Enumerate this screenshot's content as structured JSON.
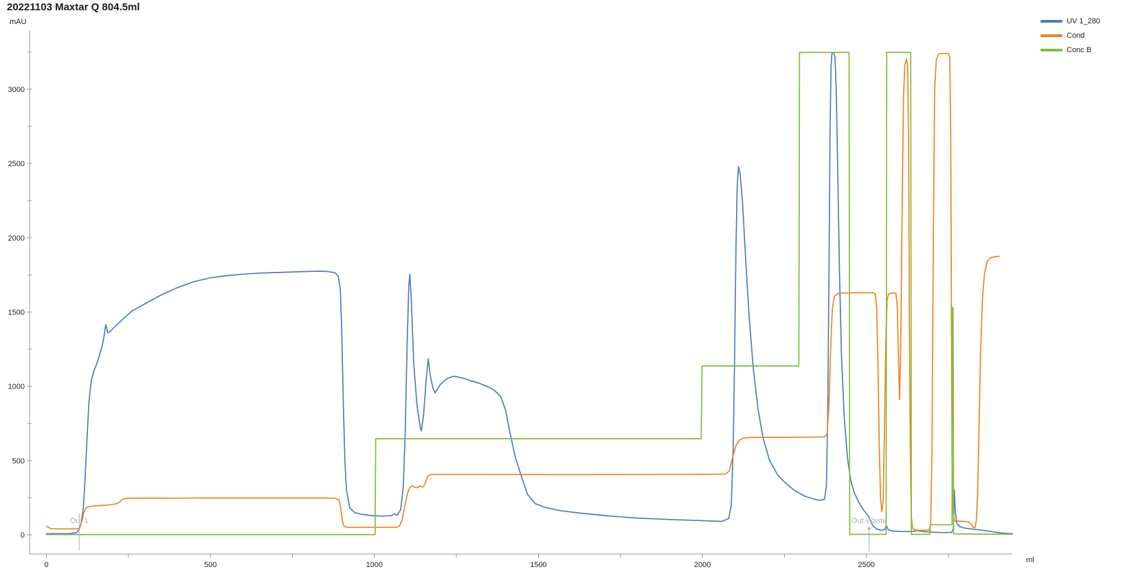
{
  "chart_data": {
    "type": "line",
    "title": "20221103 Maxtar Q 804.5ml",
    "y_axis": {
      "unit": "mAU",
      "tick_labels": [
        0,
        500,
        1000,
        1500,
        2000,
        2500,
        3000
      ],
      "minor_tick_step": 250,
      "range": [
        0,
        3390
      ]
    },
    "x_axis": {
      "unit": "ml",
      "tick_labels": [
        0,
        500,
        1000,
        1500,
        2000,
        2500
      ],
      "minor_tick_step": 250,
      "range": [
        0,
        2950
      ]
    },
    "legend_position": "top-right",
    "grid": false,
    "annotations": [
      {
        "label": "Out 1",
        "ml": 100
      },
      {
        "label": "Out Waste",
        "ml": 2508
      }
    ],
    "series": [
      {
        "name": "UV 1_280",
        "color": "#4a7ebb",
        "points": [
          [
            0,
            8
          ],
          [
            70,
            8
          ],
          [
            92,
            14
          ],
          [
            100,
            35
          ],
          [
            106,
            80
          ],
          [
            112,
            170
          ],
          [
            116,
            300
          ],
          [
            120,
            480
          ],
          [
            125,
            700
          ],
          [
            130,
            900
          ],
          [
            137,
            1040
          ],
          [
            145,
            1105
          ],
          [
            155,
            1160
          ],
          [
            170,
            1270
          ],
          [
            176,
            1340
          ],
          [
            181,
            1415
          ],
          [
            187,
            1360
          ],
          [
            195,
            1370
          ],
          [
            210,
            1405
          ],
          [
            230,
            1445
          ],
          [
            260,
            1505
          ],
          [
            300,
            1555
          ],
          [
            350,
            1615
          ],
          [
            400,
            1665
          ],
          [
            450,
            1705
          ],
          [
            500,
            1730
          ],
          [
            550,
            1745
          ],
          [
            600,
            1755
          ],
          [
            650,
            1762
          ],
          [
            700,
            1766
          ],
          [
            750,
            1770
          ],
          [
            800,
            1773
          ],
          [
            830,
            1775
          ],
          [
            855,
            1773
          ],
          [
            880,
            1765
          ],
          [
            890,
            1740
          ],
          [
            896,
            1650
          ],
          [
            900,
            1400
          ],
          [
            905,
            900
          ],
          [
            910,
            500
          ],
          [
            915,
            300
          ],
          [
            925,
            180
          ],
          [
            940,
            150
          ],
          [
            960,
            138
          ],
          [
            990,
            130
          ],
          [
            1020,
            126
          ],
          [
            1050,
            128
          ],
          [
            1060,
            140
          ],
          [
            1070,
            132
          ],
          [
            1080,
            170
          ],
          [
            1088,
            320
          ],
          [
            1094,
            700
          ],
          [
            1100,
            1300
          ],
          [
            1105,
            1680
          ],
          [
            1108,
            1755
          ],
          [
            1112,
            1600
          ],
          [
            1120,
            1150
          ],
          [
            1130,
            870
          ],
          [
            1140,
            720
          ],
          [
            1143,
            700
          ],
          [
            1150,
            810
          ],
          [
            1158,
            1050
          ],
          [
            1164,
            1185
          ],
          [
            1170,
            1080
          ],
          [
            1178,
            990
          ],
          [
            1185,
            955
          ],
          [
            1200,
            1010
          ],
          [
            1220,
            1050
          ],
          [
            1240,
            1068
          ],
          [
            1265,
            1058
          ],
          [
            1290,
            1040
          ],
          [
            1320,
            1020
          ],
          [
            1345,
            998
          ],
          [
            1365,
            975
          ],
          [
            1385,
            930
          ],
          [
            1400,
            840
          ],
          [
            1412,
            700
          ],
          [
            1430,
            520
          ],
          [
            1450,
            380
          ],
          [
            1467,
            272
          ],
          [
            1490,
            210
          ],
          [
            1520,
            185
          ],
          [
            1560,
            165
          ],
          [
            1620,
            148
          ],
          [
            1700,
            130
          ],
          [
            1800,
            113
          ],
          [
            1900,
            103
          ],
          [
            1990,
            96
          ],
          [
            2060,
            90
          ],
          [
            2080,
            110
          ],
          [
            2088,
            200
          ],
          [
            2094,
            600
          ],
          [
            2098,
            1200
          ],
          [
            2102,
            1900
          ],
          [
            2106,
            2350
          ],
          [
            2110,
            2480
          ],
          [
            2115,
            2430
          ],
          [
            2122,
            2250
          ],
          [
            2132,
            1850
          ],
          [
            2142,
            1480
          ],
          [
            2155,
            1120
          ],
          [
            2170,
            840
          ],
          [
            2185,
            650
          ],
          [
            2205,
            500
          ],
          [
            2230,
            400
          ],
          [
            2255,
            345
          ],
          [
            2280,
            300
          ],
          [
            2310,
            262
          ],
          [
            2340,
            240
          ],
          [
            2360,
            232
          ],
          [
            2372,
            240
          ],
          [
            2378,
            330
          ],
          [
            2382,
            800
          ],
          [
            2386,
            1800
          ],
          [
            2389,
            2700
          ],
          [
            2392,
            3150
          ],
          [
            2395,
            3242
          ],
          [
            2400,
            3246
          ],
          [
            2404,
            3220
          ],
          [
            2408,
            3000
          ],
          [
            2413,
            2400
          ],
          [
            2418,
            1750
          ],
          [
            2424,
            1200
          ],
          [
            2432,
            800
          ],
          [
            2442,
            520
          ],
          [
            2452,
            370
          ],
          [
            2462,
            290
          ],
          [
            2475,
            225
          ],
          [
            2492,
            165
          ],
          [
            2505,
            130
          ],
          [
            2512,
            95
          ],
          [
            2520,
            60
          ],
          [
            2532,
            38
          ],
          [
            2545,
            30
          ],
          [
            2555,
            35
          ],
          [
            2561,
            62
          ],
          [
            2566,
            35
          ],
          [
            2580,
            25
          ],
          [
            2610,
            22
          ],
          [
            2640,
            22
          ],
          [
            2655,
            28
          ],
          [
            2670,
            22
          ],
          [
            2700,
            18
          ],
          [
            2740,
            15
          ],
          [
            2760,
            16
          ],
          [
            2765,
            40
          ],
          [
            2768,
            300
          ],
          [
            2771,
            150
          ],
          [
            2776,
            75
          ],
          [
            2785,
            55
          ],
          [
            2800,
            45
          ],
          [
            2825,
            38
          ],
          [
            2850,
            32
          ],
          [
            2880,
            22
          ],
          [
            2910,
            12
          ],
          [
            2945,
            8
          ]
        ]
      },
      {
        "name": "Cond",
        "color": "#ee8420",
        "points": [
          [
            0,
            55
          ],
          [
            6,
            52
          ],
          [
            12,
            43
          ],
          [
            25,
            40
          ],
          [
            60,
            40
          ],
          [
            95,
            40
          ],
          [
            102,
            48
          ],
          [
            108,
            85
          ],
          [
            113,
            140
          ],
          [
            119,
            175
          ],
          [
            126,
            188
          ],
          [
            140,
            193
          ],
          [
            165,
            197
          ],
          [
            195,
            202
          ],
          [
            215,
            210
          ],
          [
            224,
            222
          ],
          [
            232,
            238
          ],
          [
            240,
            245
          ],
          [
            270,
            247
          ],
          [
            350,
            247
          ],
          [
            500,
            248
          ],
          [
            700,
            248
          ],
          [
            840,
            248
          ],
          [
            880,
            246
          ],
          [
            893,
            235
          ],
          [
            898,
            170
          ],
          [
            903,
            85
          ],
          [
            908,
            55
          ],
          [
            920,
            50
          ],
          [
            1000,
            50
          ],
          [
            1065,
            50
          ],
          [
            1076,
            58
          ],
          [
            1085,
            105
          ],
          [
            1093,
            200
          ],
          [
            1101,
            280
          ],
          [
            1108,
            318
          ],
          [
            1115,
            330
          ],
          [
            1123,
            320
          ],
          [
            1131,
            316
          ],
          [
            1139,
            330
          ],
          [
            1146,
            320
          ],
          [
            1152,
            332
          ],
          [
            1158,
            368
          ],
          [
            1164,
            398
          ],
          [
            1172,
            406
          ],
          [
            1250,
            406
          ],
          [
            1400,
            406
          ],
          [
            1600,
            405
          ],
          [
            1800,
            406
          ],
          [
            2000,
            407
          ],
          [
            2070,
            409
          ],
          [
            2082,
            430
          ],
          [
            2092,
            520
          ],
          [
            2102,
            600
          ],
          [
            2112,
            638
          ],
          [
            2125,
            652
          ],
          [
            2150,
            656
          ],
          [
            2250,
            657
          ],
          [
            2340,
            658
          ],
          [
            2372,
            659
          ],
          [
            2380,
            680
          ],
          [
            2386,
            880
          ],
          [
            2391,
            1250
          ],
          [
            2396,
            1520
          ],
          [
            2402,
            1605
          ],
          [
            2410,
            1622
          ],
          [
            2425,
            1628
          ],
          [
            2480,
            1630
          ],
          [
            2520,
            1630
          ],
          [
            2527,
            1622
          ],
          [
            2531,
            1540
          ],
          [
            2535,
            1150
          ],
          [
            2539,
            600
          ],
          [
            2543,
            250
          ],
          [
            2547,
            155
          ],
          [
            2551,
            230
          ],
          [
            2555,
            700
          ],
          [
            2559,
            1300
          ],
          [
            2563,
            1580
          ],
          [
            2568,
            1622
          ],
          [
            2580,
            1628
          ],
          [
            2590,
            1626
          ],
          [
            2594,
            1540
          ],
          [
            2598,
            1150
          ],
          [
            2601,
            910
          ],
          [
            2605,
            1350
          ],
          [
            2609,
            2250
          ],
          [
            2613,
            2950
          ],
          [
            2617,
            3160
          ],
          [
            2622,
            3205
          ],
          [
            2626,
            3160
          ],
          [
            2629,
            2500
          ],
          [
            2631,
            1400
          ],
          [
            2634,
            500
          ],
          [
            2637,
            120
          ],
          [
            2641,
            42
          ],
          [
            2648,
            32
          ],
          [
            2670,
            30
          ],
          [
            2691,
            32
          ],
          [
            2696,
            75
          ],
          [
            2700,
            600
          ],
          [
            2704,
            2000
          ],
          [
            2708,
            3000
          ],
          [
            2713,
            3200
          ],
          [
            2720,
            3238
          ],
          [
            2740,
            3242
          ],
          [
            2750,
            3240
          ],
          [
            2754,
            3215
          ],
          [
            2757,
            2700
          ],
          [
            2759,
            1500
          ],
          [
            2761,
            500
          ],
          [
            2764,
            150
          ],
          [
            2768,
            95
          ],
          [
            2780,
            92
          ],
          [
            2800,
            90
          ],
          [
            2812,
            86
          ],
          [
            2820,
            70
          ],
          [
            2826,
            48
          ],
          [
            2831,
            50
          ],
          [
            2835,
            95
          ],
          [
            2839,
            280
          ],
          [
            2843,
            700
          ],
          [
            2848,
            1250
          ],
          [
            2854,
            1600
          ],
          [
            2860,
            1760
          ],
          [
            2868,
            1840
          ],
          [
            2878,
            1865
          ],
          [
            2890,
            1872
          ],
          [
            2905,
            1875
          ]
        ]
      },
      {
        "name": "Conc B",
        "color": "#85bb37",
        "points": [
          [
            0,
            2
          ],
          [
            1002,
            2
          ],
          [
            1004,
            647
          ],
          [
            1996,
            647
          ],
          [
            1999,
            1137
          ],
          [
            2294,
            1137
          ],
          [
            2296,
            3248
          ],
          [
            2447,
            3248
          ],
          [
            2449,
            3
          ],
          [
            2560,
            3
          ],
          [
            2562,
            3248
          ],
          [
            2635,
            3248
          ],
          [
            2637,
            3
          ],
          [
            2693,
            3
          ],
          [
            2695,
            68
          ],
          [
            2758,
            68
          ],
          [
            2761,
            70
          ],
          [
            2762,
            1530
          ],
          [
            2764,
            1530
          ],
          [
            2766,
            6
          ],
          [
            2945,
            4
          ]
        ]
      }
    ]
  },
  "colors": {
    "axis_line": "#9a9a9a",
    "tick_label": "#222222",
    "annotation": "#b0b0b0",
    "title_text": "#1c1c1c"
  }
}
